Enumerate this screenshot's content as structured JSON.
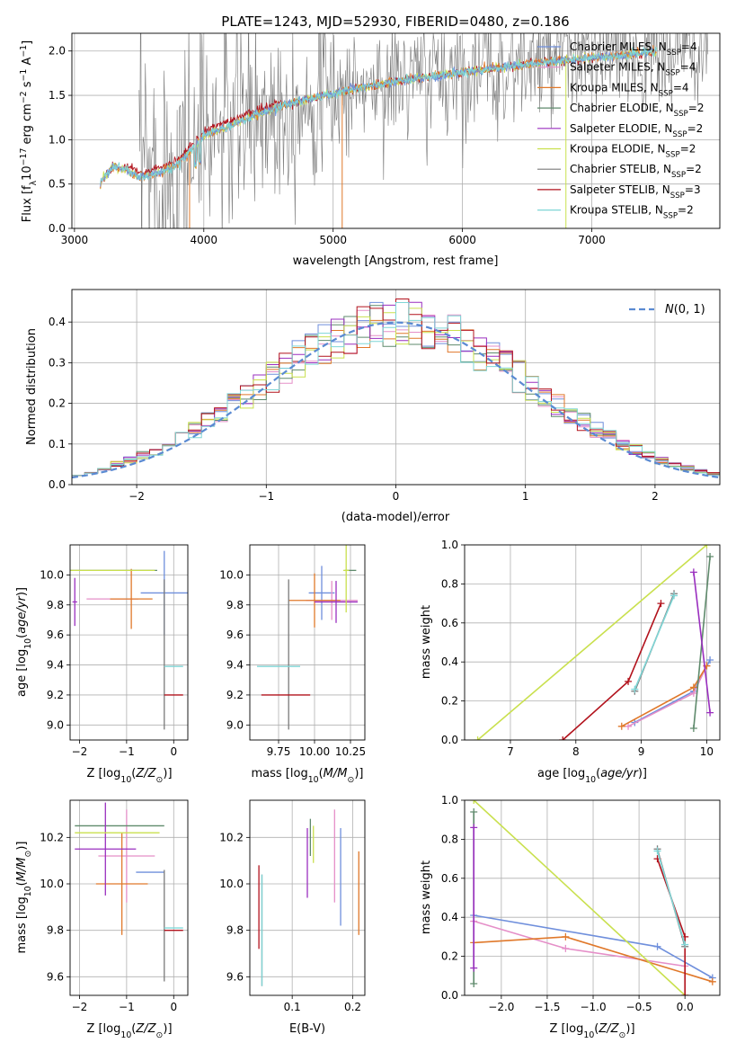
{
  "figure_title": "PLATE=1243, MJD=52930, FIBERID=0480, z=0.186",
  "colors": {
    "chabrier_miles": "#6f8fdc",
    "salpeter_miles": "#e58fc8",
    "kroupa_miles": "#e0782a",
    "chabrier_elodie": "#5f8a6c",
    "salpeter_elodie": "#9a2fbf",
    "kroupa_elodie": "#c9e04e",
    "chabrier_stelib": "#7a7a7a",
    "salpeter_stelib": "#b2121c",
    "kroupa_stelib": "#7fd6d6",
    "normal_fit": "#5a8ad2",
    "grid": "#b0b0b0"
  },
  "panels": {
    "spectrum": {
      "xlabel": "wavelength [Angstrom, rest frame]",
      "ylabel": "Flux [f_λ10^-17 erg cm^-2 s^-1 A^-1]",
      "xticks": [
        "3000",
        "4000",
        "5000",
        "6000",
        "7000"
      ],
      "yticks": [
        "0.0",
        "0.5",
        "1.0",
        "1.5",
        "2.0"
      ],
      "legend": [
        {
          "label": "Chabrier MILES, N_SSP=4",
          "key": "chabrier_miles"
        },
        {
          "label": "Salpeter MILES, N_SSP=4",
          "key": "salpeter_miles"
        },
        {
          "label": "Kroupa MILES, N_SSP=4",
          "key": "kroupa_miles"
        },
        {
          "label": "Chabrier ELODIE, N_SSP=2",
          "key": "chabrier_elodie"
        },
        {
          "label": "Salpeter ELODIE, N_SSP=2",
          "key": "salpeter_elodie"
        },
        {
          "label": "Kroupa ELODIE, N_SSP=2",
          "key": "kroupa_elodie"
        },
        {
          "label": "Chabrier STELIB, N_SSP=2",
          "key": "chabrier_stelib"
        },
        {
          "label": "Salpeter STELIB, N_SSP=3",
          "key": "salpeter_stelib"
        },
        {
          "label": "Kroupa STELIB, N_SSP=2",
          "key": "kroupa_stelib"
        }
      ]
    },
    "histogram": {
      "xlabel": "(data-model)/error",
      "ylabel": "Normed distribution",
      "xticks": [
        "−2",
        "−1",
        "0",
        "1",
        "2"
      ],
      "yticks": [
        "0.0",
        "0.1",
        "0.2",
        "0.3",
        "0.4"
      ],
      "legend_label": "N(0,1)"
    },
    "age_z": {
      "xlabel": "Z [log10(Z/Z☉)]",
      "ylabel": "age  [log10(age/yr)]",
      "xticks": [
        "−2",
        "−1",
        "0"
      ],
      "yticks": [
        "9.0",
        "9.2",
        "9.4",
        "9.6",
        "9.8",
        "10.0"
      ]
    },
    "age_mass": {
      "xlabel": "mass [log10(M/M☉)]",
      "xticks": [
        "9.75",
        "10.00",
        "10.25"
      ],
      "yticks": [
        "9.0",
        "9.2",
        "9.4",
        "9.6",
        "9.8",
        "10.0"
      ]
    },
    "weight_age": {
      "xlabel": "age  [log10(age/yr)]",
      "ylabel": "mass weight",
      "xticks": [
        "7",
        "8",
        "9",
        "10"
      ],
      "yticks": [
        "0.0",
        "0.2",
        "0.4",
        "0.6",
        "0.8",
        "1.0"
      ]
    },
    "mass_z": {
      "xlabel": "Z [log10(Z/Z☉)]",
      "ylabel": "mass [log10(M/M☉)]",
      "xticks": [
        "−2",
        "−1",
        "0"
      ],
      "yticks": [
        "9.6",
        "9.8",
        "10.0",
        "10.2"
      ]
    },
    "mass_ebv": {
      "xlabel": "E(B-V)",
      "xticks": [
        "0.1",
        "0.2"
      ],
      "yticks": [
        "9.6",
        "9.8",
        "10.0",
        "10.2"
      ]
    },
    "weight_z": {
      "xlabel": "Z [log10(Z/Z☉)]",
      "ylabel": "mass weight",
      "xticks": [
        "−2.0",
        "−1.5",
        "−1.0",
        "−0.5",
        "0.0"
      ],
      "yticks": [
        "0.0",
        "0.2",
        "0.4",
        "0.6",
        "0.8",
        "1.0"
      ]
    }
  },
  "chart_data": [
    {
      "type": "line",
      "title": "PLATE=1243, MJD=52930, FIBERID=0480, z=0.186",
      "xlabel": "wavelength [Angstrom, rest frame]",
      "ylabel": "Flux",
      "xlim": [
        2980,
        7990
      ],
      "ylim": [
        0,
        2.2
      ],
      "model_trend": {
        "x": [
          3200,
          3300,
          3400,
          3500,
          3600,
          3700,
          3800,
          3900,
          4000,
          4200,
          4400,
          4600,
          4800,
          5000,
          5200,
          5500,
          5800,
          6100,
          6400,
          6700,
          7000,
          7300,
          7500
        ],
        "y": [
          0.52,
          0.7,
          0.66,
          0.58,
          0.6,
          0.65,
          0.72,
          0.88,
          1.05,
          1.15,
          1.28,
          1.38,
          1.46,
          1.52,
          1.58,
          1.66,
          1.72,
          1.78,
          1.83,
          1.88,
          1.92,
          1.96,
          2.0
        ]
      },
      "data_range": [
        3500,
        7900
      ]
    },
    {
      "type": "line",
      "xlabel": "(data-model)/error",
      "ylabel": "Normed distribution",
      "xlim": [
        -2.5,
        2.5
      ],
      "ylim": [
        0,
        0.48
      ],
      "bin_width": 0.1,
      "normal": {
        "label": "N(0,1)",
        "mean": 0,
        "sigma": 1
      }
    },
    {
      "type": "scatter",
      "xlabel": "Z [log10(Z/Z☉)]",
      "ylabel": "age [log10(age/yr)]",
      "xlim": [
        -2.2,
        0.3
      ],
      "ylim": [
        8.9,
        10.2
      ],
      "points": [
        {
          "key": "chabrier_miles",
          "x": -0.2,
          "y": 9.88,
          "xerr": 0.5,
          "yerr": 0.28
        },
        {
          "key": "salpeter_miles",
          "x": -1.3,
          "y": 9.84,
          "xerr": 0.55,
          "yerr": 0.0
        },
        {
          "key": "kroupa_miles",
          "x": -0.9,
          "y": 9.84,
          "xerr": 0.45,
          "yerr": 0.2
        },
        {
          "key": "chabrier_elodie",
          "x": -1.3,
          "y": 10.03,
          "xerr": 0.95,
          "yerr": 0.0
        },
        {
          "key": "salpeter_elodie",
          "x": -2.1,
          "y": 9.82,
          "xerr": 0.05,
          "yerr": 0.16
        },
        {
          "key": "kroupa_elodie",
          "x": -1.3,
          "y": 10.03,
          "xerr": 0.9,
          "yerr": 0.0
        },
        {
          "key": "chabrier_stelib",
          "x": -0.2,
          "y": 9.47,
          "xerr": 0.0,
          "yerr": 0.5
        },
        {
          "key": "salpeter_stelib",
          "x": 0.0,
          "y": 9.2,
          "xerr": 0.2,
          "yerr": 0.0
        },
        {
          "key": "kroupa_stelib",
          "x": 0.0,
          "y": 9.39,
          "xerr": 0.2,
          "yerr": 0.0
        }
      ]
    },
    {
      "type": "scatter",
      "xlabel": "mass [log10(M/M☉)]",
      "ylabel": "age [log10(age/yr)]",
      "xlim": [
        9.55,
        10.35
      ],
      "ylim": [
        8.9,
        10.2
      ],
      "points": [
        {
          "key": "chabrier_miles",
          "x": 10.05,
          "y": 9.88,
          "xerr": 0.09,
          "yerr": 0.18
        },
        {
          "key": "salpeter_miles",
          "x": 10.12,
          "y": 9.83,
          "xerr": 0.18,
          "yerr": 0.13
        },
        {
          "key": "kroupa_miles",
          "x": 10.0,
          "y": 9.83,
          "xerr": 0.18,
          "yerr": 0.18
        },
        {
          "key": "chabrier_elodie",
          "x": 10.25,
          "y": 10.03,
          "xerr": 0.04,
          "yerr": 0.0
        },
        {
          "key": "salpeter_elodie",
          "x": 10.15,
          "y": 9.82,
          "xerr": 0.15,
          "yerr": 0.14
        },
        {
          "key": "kroupa_elodie",
          "x": 10.22,
          "y": 10.03,
          "xerr": 0.02,
          "yerr": 0.28
        },
        {
          "key": "chabrier_stelib",
          "x": 9.82,
          "y": 9.47,
          "xerr": 0.0,
          "yerr": 0.5
        },
        {
          "key": "salpeter_stelib",
          "x": 9.8,
          "y": 9.2,
          "xerr": 0.17,
          "yerr": 0.0
        },
        {
          "key": "kroupa_stelib",
          "x": 9.75,
          "y": 9.39,
          "xerr": 0.15,
          "yerr": 0.0
        }
      ]
    },
    {
      "type": "line",
      "xlabel": "age [log10(age/yr)]",
      "ylabel": "mass weight",
      "xlim": [
        6.3,
        10.2
      ],
      "ylim": [
        0,
        1
      ],
      "series": [
        {
          "key": "chabrier_miles",
          "x": [
            8.9,
            9.8,
            10.05
          ],
          "y": [
            0.09,
            0.25,
            0.41
          ]
        },
        {
          "key": "salpeter_miles",
          "x": [
            8.8,
            9.8,
            10.0
          ],
          "y": [
            0.07,
            0.24,
            0.38
          ]
        },
        {
          "key": "kroupa_miles",
          "x": [
            8.7,
            9.8,
            10.0
          ],
          "y": [
            0.07,
            0.27,
            0.38
          ]
        },
        {
          "key": "chabrier_elodie",
          "x": [
            9.8,
            10.05
          ],
          "y": [
            0.06,
            0.94
          ]
        },
        {
          "key": "salpeter_elodie",
          "x": [
            9.8,
            10.05
          ],
          "y": [
            0.86,
            0.14
          ]
        },
        {
          "key": "kroupa_elodie",
          "x": [
            6.5,
            10.0
          ],
          "y": [
            0.0,
            1.0
          ]
        },
        {
          "key": "chabrier_stelib",
          "x": [
            8.9,
            9.5
          ],
          "y": [
            0.25,
            0.75
          ]
        },
        {
          "key": "salpeter_stelib",
          "x": [
            7.8,
            8.8,
            9.3
          ],
          "y": [
            0.0,
            0.3,
            0.7
          ]
        },
        {
          "key": "kroupa_stelib",
          "x": [
            8.9,
            9.5
          ],
          "y": [
            0.26,
            0.74
          ]
        }
      ]
    },
    {
      "type": "scatter",
      "xlabel": "Z [log10(Z/Z☉)]",
      "ylabel": "mass [log10(M/M☉)]",
      "xlim": [
        -2.2,
        0.3
      ],
      "ylim": [
        9.52,
        10.36
      ],
      "points": [
        {
          "key": "chabrier_miles",
          "x": -0.5,
          "y": 10.05,
          "xerr": 0.3,
          "yerr": 0.0
        },
        {
          "key": "salpeter_miles",
          "x": -1.0,
          "y": 10.12,
          "xerr": 0.6,
          "yerr": 0.2
        },
        {
          "key": "kroupa_miles",
          "x": -1.1,
          "y": 10.0,
          "xerr": 0.55,
          "yerr": 0.22
        },
        {
          "key": "chabrier_elodie",
          "x": -1.15,
          "y": 10.25,
          "xerr": 0.95,
          "yerr": 0.0
        },
        {
          "key": "salpeter_elodie",
          "x": -1.45,
          "y": 10.15,
          "xerr": 0.65,
          "yerr": 0.2
        },
        {
          "key": "kroupa_elodie",
          "x": -1.2,
          "y": 10.22,
          "xerr": 0.9,
          "yerr": 0.0
        },
        {
          "key": "chabrier_stelib",
          "x": -0.2,
          "y": 9.82,
          "xerr": 0.0,
          "yerr": 0.24
        },
        {
          "key": "salpeter_stelib",
          "x": 0.0,
          "y": 9.8,
          "xerr": 0.2,
          "yerr": 0.0
        },
        {
          "key": "kroupa_stelib",
          "x": 0.0,
          "y": 9.81,
          "xerr": 0.2,
          "yerr": 0.0
        }
      ]
    },
    {
      "type": "scatter",
      "xlabel": "E(B-V)",
      "ylabel": "mass [log10(M/M☉)]",
      "xlim": [
        0.03,
        0.22
      ],
      "ylim": [
        9.52,
        10.36
      ],
      "points": [
        {
          "key": "chabrier_miles",
          "x": 0.18,
          "y": 10.03,
          "xerr": 0.0,
          "yerr": 0.21
        },
        {
          "key": "salpeter_miles",
          "x": 0.17,
          "y": 10.12,
          "xerr": 0.0,
          "yerr": 0.2
        },
        {
          "key": "kroupa_miles",
          "x": 0.21,
          "y": 9.96,
          "xerr": 0.0,
          "yerr": 0.18
        },
        {
          "key": "chabrier_elodie",
          "x": 0.13,
          "y": 10.2,
          "xerr": 0.0,
          "yerr": 0.08
        },
        {
          "key": "salpeter_elodie",
          "x": 0.125,
          "y": 10.09,
          "xerr": 0.0,
          "yerr": 0.15
        },
        {
          "key": "kroupa_elodie",
          "x": 0.135,
          "y": 10.17,
          "xerr": 0.0,
          "yerr": 0.08
        },
        {
          "key": "chabrier_stelib",
          "x": 0.05,
          "y": 9.8,
          "xerr": 0.0,
          "yerr": 0.24
        },
        {
          "key": "salpeter_stelib",
          "x": 0.045,
          "y": 9.9,
          "xerr": 0.0,
          "yerr": 0.18
        },
        {
          "key": "kroupa_stelib",
          "x": 0.05,
          "y": 9.8,
          "xerr": 0.0,
          "yerr": 0.24
        }
      ]
    },
    {
      "type": "line",
      "xlabel": "Z [log10(Z/Z☉)]",
      "ylabel": "mass weight",
      "xlim": [
        -2.4,
        0.38
      ],
      "ylim": [
        0,
        1
      ],
      "series": [
        {
          "key": "chabrier_miles",
          "x": [
            -2.3,
            -0.3,
            0.3
          ],
          "y": [
            0.41,
            0.25,
            0.09
          ]
        },
        {
          "key": "salpeter_miles",
          "x": [
            -2.3,
            -1.3,
            0.0
          ],
          "y": [
            0.38,
            0.24,
            0.15
          ]
        },
        {
          "key": "kroupa_miles",
          "x": [
            -2.3,
            -1.3,
            0.3
          ],
          "y": [
            0.27,
            0.3,
            0.07
          ]
        },
        {
          "key": "chabrier_elodie",
          "x": [
            -2.3,
            -2.3
          ],
          "y": [
            0.06,
            0.94
          ]
        },
        {
          "key": "salpeter_elodie",
          "x": [
            -2.3,
            -2.3
          ],
          "y": [
            0.14,
            0.86
          ]
        },
        {
          "key": "kroupa_elodie",
          "x": [
            -2.3,
            0.0
          ],
          "y": [
            1.0,
            0.0
          ]
        },
        {
          "key": "chabrier_stelib",
          "x": [
            -0.3,
            0.0
          ],
          "y": [
            0.75,
            0.25
          ]
        },
        {
          "key": "salpeter_stelib",
          "x": [
            -0.3,
            0.0,
            0.0
          ],
          "y": [
            0.7,
            0.3,
            0.0
          ]
        },
        {
          "key": "kroupa_stelib",
          "x": [
            -0.3,
            0.0
          ],
          "y": [
            0.74,
            0.26
          ]
        }
      ]
    }
  ]
}
